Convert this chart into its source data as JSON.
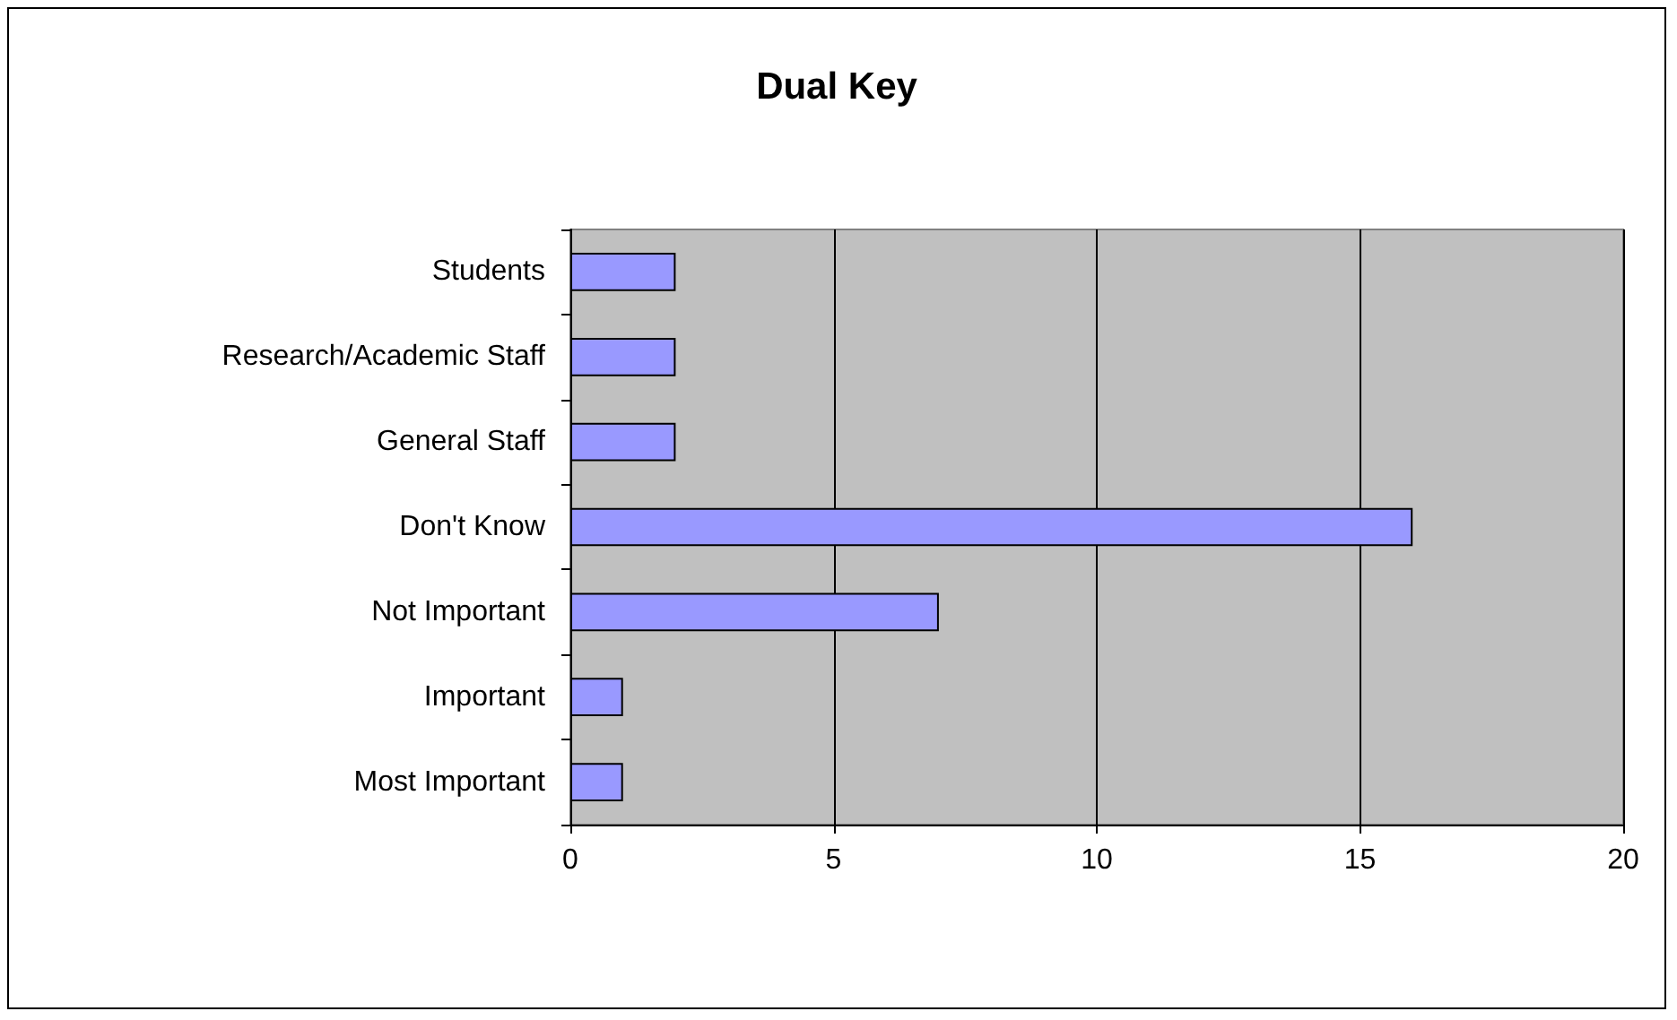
{
  "chart_data": {
    "type": "bar",
    "title": "Dual Key",
    "orientation": "horizontal",
    "categories": [
      "Students",
      "Research/Academic Staff",
      "General Staff",
      "Don't Know",
      "Not Important",
      "Important",
      "Most Important"
    ],
    "values": [
      2,
      2,
      2,
      16,
      7,
      1,
      1
    ],
    "color": "#9999ff",
    "xlim": [
      0,
      20
    ],
    "xticks": [
      0,
      5,
      10,
      15,
      20
    ],
    "grid": "x"
  }
}
